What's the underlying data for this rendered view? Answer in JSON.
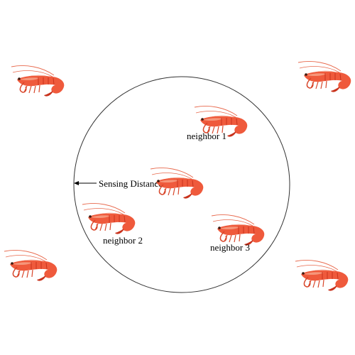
{
  "labels": {
    "sensing_distance": "Sensing Distance",
    "neighbor_1": "neighbor 1",
    "neighbor_2": "neighbor 2",
    "neighbor_3": "neighbor 3"
  },
  "colors": {
    "shrimp_body": "#ef5a3c",
    "shrimp_dark": "#c8321c",
    "shrimp_light": "#f7a58a",
    "circle_stroke": "#333333",
    "text": "#000000"
  },
  "icons": {
    "agent": "shrimp-icon"
  }
}
